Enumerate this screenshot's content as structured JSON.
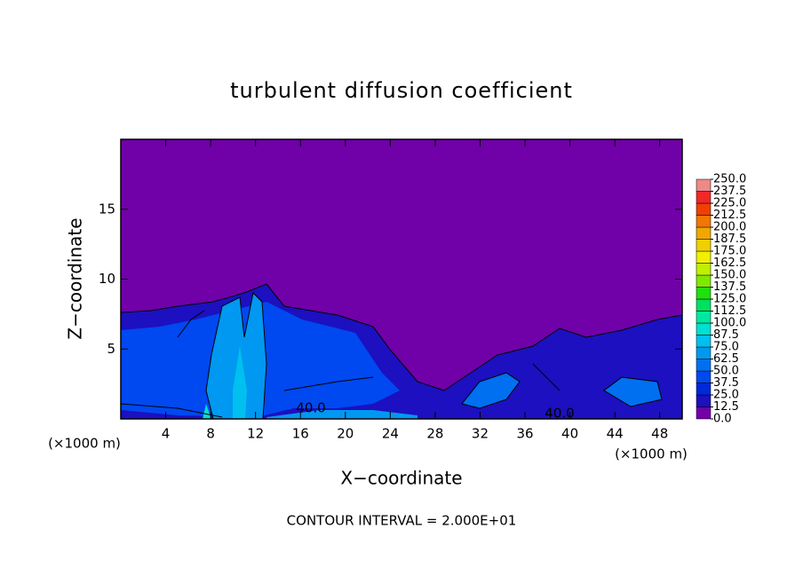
{
  "chart_data": {
    "type": "contour",
    "title": "turbulent diffusion coefficient",
    "x_label": "X−coordinate",
    "y_label": "Z−coordinate",
    "x_unit_labels": [
      "(×1000 m)",
      "(×1000 m)"
    ],
    "footnote": "CONTOUR INTERVAL = 2.000E+01",
    "contour_labels": [
      "40.0",
      "40.0"
    ],
    "xlim": [
      0,
      50
    ],
    "ylim": [
      0,
      20
    ],
    "xticks": [
      4,
      8,
      12,
      16,
      20,
      24,
      28,
      32,
      36,
      40,
      44,
      48
    ],
    "yticks": [
      5,
      10,
      15
    ],
    "colorbar": {
      "ticks": [
        {
          "value": 0,
          "label": "0.0"
        },
        {
          "value": 12.5,
          "label": "12.5"
        },
        {
          "value": 25,
          "label": "25.0"
        },
        {
          "value": 37.5,
          "label": "37.5"
        },
        {
          "value": 50,
          "label": "50.0"
        },
        {
          "value": 62.5,
          "label": "62.5"
        },
        {
          "value": 75,
          "label": "75.0"
        },
        {
          "value": 87.5,
          "label": "87.5"
        },
        {
          "value": 100,
          "label": "100.0"
        },
        {
          "value": 112.5,
          "label": "112.5"
        },
        {
          "value": 125,
          "label": "125.0"
        },
        {
          "value": 137.5,
          "label": "137.5"
        },
        {
          "value": 150,
          "label": "150.0"
        },
        {
          "value": 162.5,
          "label": "162.5"
        },
        {
          "value": 175,
          "label": "175.0"
        },
        {
          "value": 187.5,
          "label": "187.5"
        },
        {
          "value": 200,
          "label": "200.0"
        },
        {
          "value": 212.5,
          "label": "212.5"
        },
        {
          "value": 225,
          "label": "225.0"
        },
        {
          "value": 237.5,
          "label": "237.5"
        },
        {
          "value": 250,
          "label": "250.0"
        }
      ],
      "colors": [
        "#7000a8",
        "#1c10c0",
        "#0028d8",
        "#0048f0",
        "#0070f0",
        "#0098f0",
        "#00c0f0",
        "#00e0d0",
        "#00e8a0",
        "#00e060",
        "#20e010",
        "#80e800",
        "#c0f000",
        "#f0f000",
        "#f0d000",
        "#f0a800",
        "#f07800",
        "#f04000",
        "#f02828",
        "#f08888"
      ]
    }
  }
}
